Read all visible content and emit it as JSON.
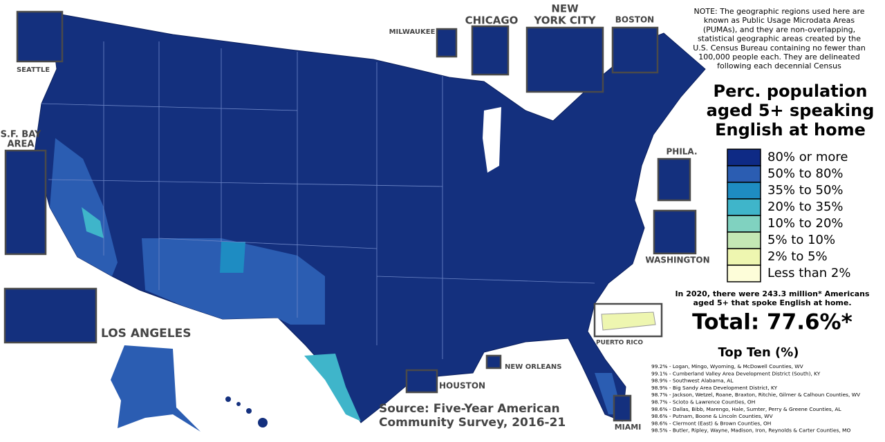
{
  "note": [
    "NOTE: The geographic regions used here are",
    "known as Public Usage Microdata Areas",
    "(PUMAs), and they are non-overlapping,",
    "statistical geographic areas created by the",
    "U.S. Census Bureau containing no fewer than",
    "100,000 people each. They are delineated",
    "following each decennial Census"
  ],
  "title": [
    "Perc. population",
    "aged 5+ speaking",
    "English at home"
  ],
  "legend": [
    {
      "label": "80% or more",
      "color": "#0e2a85"
    },
    {
      "label": "50% to 80%",
      "color": "#2b5db2"
    },
    {
      "label": "35% to 50%",
      "color": "#1e8cc2"
    },
    {
      "label": "20% to 35%",
      "color": "#3fb5ca"
    },
    {
      "label": "10% to 20%",
      "color": "#80d2c0"
    },
    {
      "label": "5% to 10%",
      "color": "#c4e7b4"
    },
    {
      "label": "2% to 5%",
      "color": "#eef6b0"
    },
    {
      "label": "Less than 2%",
      "color": "#fdfdd9"
    }
  ],
  "summary": [
    "In 2020, there were 243.3 million* Americans",
    "aged 5+ that spoke English at home."
  ],
  "total": "Total: 77.6%*",
  "top_ten": {
    "title": "Top Ten (%)",
    "items": [
      "99.2% - Logan, Mingo, Wyoming, & McDowell Counties, WV",
      "99.1% - Cumberland Valley Area Development District (South), KY",
      "98.9% - Southwest Alabama, AL",
      "98.9% - Big Sandy Area Development District, KY",
      "98.7% - Jackson, Wetzel, Roane, Braxton, Ritchie, Gilmer & Calhoun Counties, WV",
      "98.7% - Scioto & Lawrence Counties, OH",
      "98.6% - Dallas, Bibb, Marengo, Hale, Sumter, Perry & Greene Counties, AL",
      "98.6% - Putnam, Boone & Lincoln Counties, WV",
      "98.6% - Clermont (East) & Brown Counties, OH",
      "98.5% - Butler, Ripley, Wayne, Madison, Iron, Reynolds & Carter Counties, MO"
    ]
  },
  "source": [
    "Source: Five-Year American",
    "Community Survey, 2016-21"
  ],
  "insets": {
    "seattle": "SEATTLE",
    "sf": [
      "S.F. BAY",
      "AREA"
    ],
    "la": "LOS ANGELES",
    "milwaukee": "MILWAUKEE",
    "chicago": "CHICAGO",
    "nyc": [
      "NEW",
      "YORK CITY"
    ],
    "boston": "BOSTON",
    "phila": "PHILA.",
    "washington": "WASHINGTON",
    "puerto_rico": "PUERTO RICO",
    "miami": "MIAMI",
    "houston": "HOUSTON",
    "new_orleans": "NEW ORLEANS"
  }
}
